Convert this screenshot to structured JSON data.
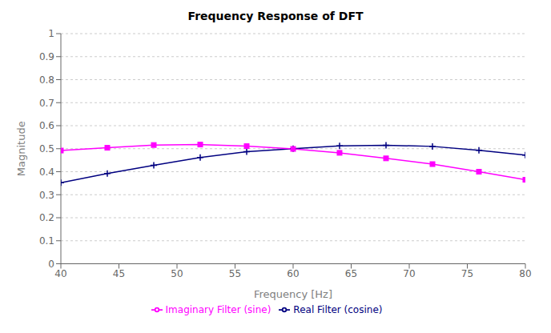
{
  "chart_data": {
    "type": "line",
    "title": "Frequency Response of DFT",
    "xlabel": "Frequency [Hz]",
    "ylabel": "Magnitude",
    "x": [
      40,
      44,
      48,
      52,
      56,
      60,
      64,
      68,
      72,
      76,
      80
    ],
    "series": [
      {
        "name": "Real Filter (cosine)",
        "color": "#000080",
        "marker": "plus",
        "values": [
          0.352,
          0.392,
          0.428,
          0.462,
          0.487,
          0.5,
          0.512,
          0.515,
          0.51,
          0.493,
          0.472
        ]
      },
      {
        "name": "Imaginary Filter (sine)",
        "color": "#FF00FF",
        "marker": "square",
        "values": [
          0.492,
          0.504,
          0.516,
          0.518,
          0.511,
          0.499,
          0.482,
          0.458,
          0.433,
          0.4,
          0.365
        ]
      }
    ],
    "xlim": [
      40,
      80
    ],
    "ylim": [
      0,
      1
    ],
    "xticks": [
      40,
      45,
      50,
      55,
      60,
      65,
      70,
      75,
      80
    ],
    "yticks": [
      0,
      0.1,
      0.2,
      0.3,
      0.4,
      0.5,
      0.6,
      0.7,
      0.8,
      0.9,
      1
    ],
    "grid": "y",
    "legend": "bottom"
  }
}
